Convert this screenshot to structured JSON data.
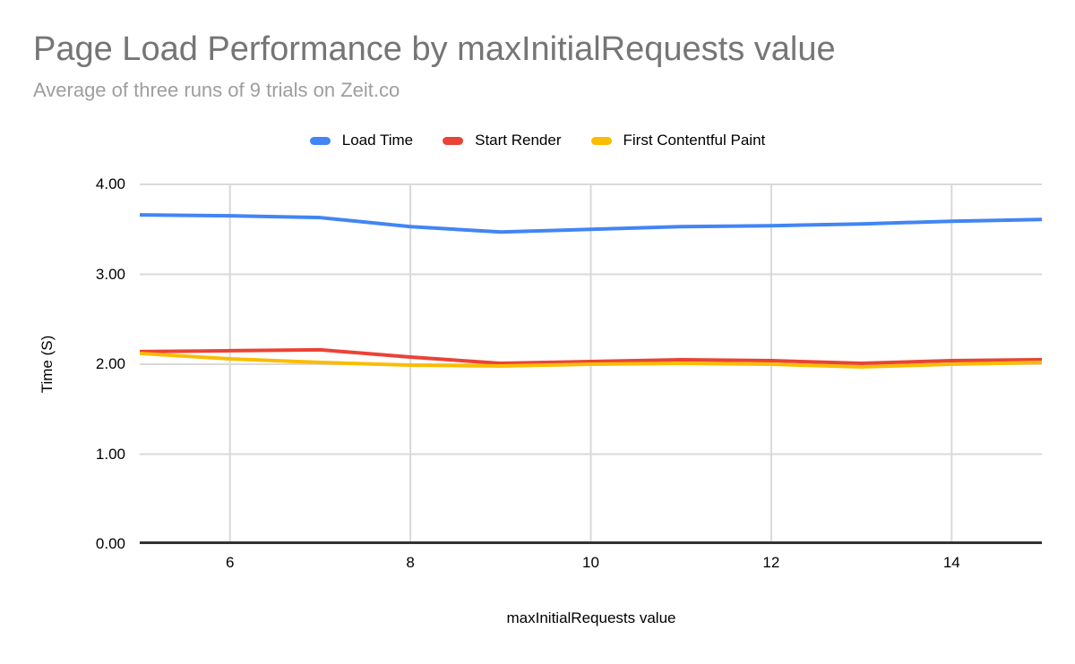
{
  "colors": {
    "title_text": "#757575",
    "subtitle_text": "#9e9e9e",
    "axis_text": "#000000",
    "gridline": "#d9d9d9",
    "axis_line": "#333333"
  },
  "chart_data": {
    "type": "line",
    "title": "Page Load Performance by maxInitialRequests value",
    "subtitle": "Average of three runs of 9 trials on Zeit.co",
    "xlabel": "maxInitialRequests value",
    "ylabel": "Time (S)",
    "x": [
      5,
      6,
      7,
      8,
      9,
      10,
      11,
      12,
      13,
      14,
      15
    ],
    "xlim": [
      5,
      15
    ],
    "ylim": [
      0,
      4
    ],
    "x_ticks": [
      6,
      8,
      10,
      12,
      14
    ],
    "y_ticks": [
      0,
      1,
      2,
      3,
      4
    ],
    "y_tick_decimals": 2,
    "grid": true,
    "legend_position": "top-center",
    "line_width": 4,
    "series": [
      {
        "name": "Load Time",
        "color": "#4285f4",
        "values": [
          3.66,
          3.65,
          3.63,
          3.53,
          3.47,
          3.5,
          3.53,
          3.54,
          3.56,
          3.59,
          3.61
        ]
      },
      {
        "name": "Start Render",
        "color": "#ea4335",
        "values": [
          2.14,
          2.15,
          2.16,
          2.08,
          2.01,
          2.03,
          2.05,
          2.04,
          2.01,
          2.04,
          2.05
        ]
      },
      {
        "name": "First Contentful Paint",
        "color": "#fbbc04",
        "values": [
          2.12,
          2.06,
          2.02,
          1.99,
          1.98,
          2.0,
          2.01,
          2.0,
          1.97,
          2.0,
          2.02
        ]
      }
    ]
  }
}
